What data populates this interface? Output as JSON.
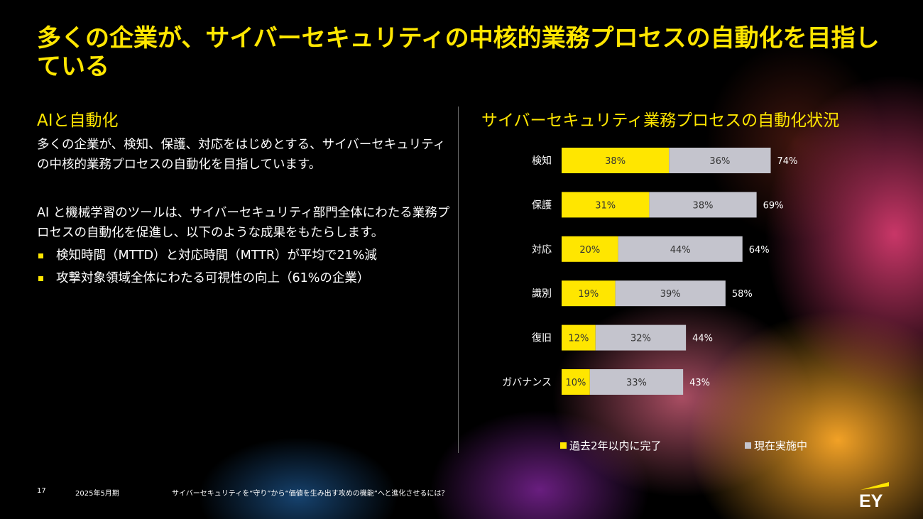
{
  "title": "多くの企業が、サイバーセキュリティの中核的業務プロセスの自動化を目指している",
  "left": {
    "heading": "AIと自動化",
    "para1": "多くの企業が、検知、保護、対応をはじめとする、サイバーセキュリティの中核的業務プロセスの自動化を目指しています。",
    "para2": "AI と機械学習のツールは、サイバーセキュリティ部門全体にわたる業務プロセスの自動化を促進し、以下のような成果をもたらします。",
    "bullets": [
      "検知時間（MTTD）と対応時間（MTTR）が平均で21%減",
      "攻撃対象領域全体にわたる可視性の向上（61%の企業）"
    ]
  },
  "chart_title": "サイバーセキュリティ業務プロセスの自動化状況",
  "chart_data": {
    "type": "bar",
    "orientation": "horizontal",
    "stacked": true,
    "categories": [
      "検知",
      "保護",
      "対応",
      "識別",
      "復旧",
      "ガバナンス"
    ],
    "series": [
      {
        "name": "過去2年以内に完了",
        "values": [
          38,
          31,
          20,
          19,
          12,
          10
        ],
        "color": "#FFE600"
      },
      {
        "name": "現在実施中",
        "values": [
          36,
          38,
          44,
          39,
          32,
          33
        ],
        "color": "#C4C4CD"
      }
    ],
    "totals": [
      74,
      69,
      64,
      58,
      44,
      43
    ],
    "unit": "%",
    "legend_position": "bottom"
  },
  "footer": {
    "page": "17",
    "date": "2025年5月期",
    "doc": "サイバーセキュリティを“守り”から“価値を生み出す攻めの機能”へと進化させるには？"
  },
  "logo_text": "EY"
}
